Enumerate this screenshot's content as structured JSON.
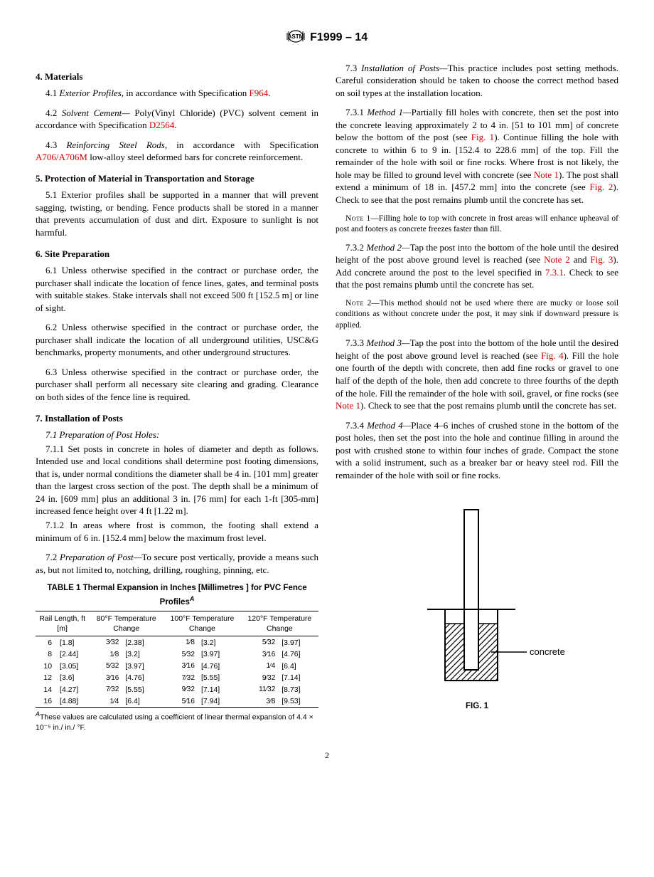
{
  "header": {
    "standard": "F1999 – 14"
  },
  "sec4": {
    "title": "4. Materials",
    "p41a": "4.1 ",
    "p41b": "Exterior Profiles,",
    "p41c": " in accordance with Specification ",
    "p41ref": "F964",
    "p41d": ".",
    "p42a": "4.2 ",
    "p42b": "Solvent Cement—",
    "p42c": " Poly(Vinyl Chloride) (PVC) solvent cement in accordance with Specification ",
    "p42ref": "D2564",
    "p42d": ".",
    "p43a": "4.3 ",
    "p43b": "Reinforcing Steel Rods,",
    "p43c": " in accordance with Specification ",
    "p43ref": "A706/A706M",
    "p43d": " low-alloy steel deformed bars for concrete reinforcement."
  },
  "sec5": {
    "title": "5. Protection of Material in Transportation and Storage",
    "p51": "5.1 Exterior profiles shall be supported in a manner that will prevent sagging, twisting, or bending. Fence products shall be stored in a manner that prevents accumulation of dust and dirt. Exposure to sunlight is not harmful."
  },
  "sec6": {
    "title": "6. Site Preparation",
    "p61": "6.1 Unless otherwise specified in the contract or purchase order, the purchaser shall indicate the location of fence lines, gates, and terminal posts with suitable stakes. Stake intervals shall not exceed 500 ft [152.5 m] or line of sight.",
    "p62": "6.2 Unless otherwise specified in the contract or purchase order, the purchaser shall indicate the location of all underground utilities, USC&G benchmarks, property monuments, and other underground structures.",
    "p63": "6.3 Unless otherwise specified in the contract or purchase order, the purchaser shall perform all necessary site clearing and grading. Clearance on both sides of the fence line is required."
  },
  "sec7": {
    "title": "7. Installation of Posts",
    "p71title": "7.1 Preparation of Post Holes:",
    "p711": "7.1.1 Set posts in concrete in holes of diameter and depth as follows. Intended use and local conditions shall determine post footing dimensions, that is, under normal conditions the diameter shall be 4 in. [101 mm] greater than the largest cross section of the post. The depth shall be a minimum of 24 in. [609 mm] plus an additional 3 in. [76 mm] for each 1-ft [305-mm] increased fence height over 4 ft [1.22 m].",
    "p712": "7.1.2 In areas where frost is common, the footing shall extend a minimum of 6 in. [152.4 mm] below the maximum frost level.",
    "p72a": "7.2 ",
    "p72b": "Preparation of Post—",
    "p72c": "To secure post vertically, provide a means such as, but not limited to, notching, drilling, roughing, pinning, etc.",
    "p73a": "7.3 ",
    "p73b": "Installation of Posts—",
    "p73c": "This practice includes post setting methods. Careful consideration should be taken to choose the correct method based on soil types at the installation location.",
    "p731a": "7.3.1 ",
    "p731b": "Method 1—",
    "p731c": "Partially fill holes with concrete, then set the post into the concrete leaving approximately 2 to 4 in. [51 to 101 mm] of concrete below the bottom of the post (see ",
    "p731ref1": "Fig. 1",
    "p731d": "). Continue filling the hole with concrete to within 6 to 9 in. [152.4 to 228.6 mm] of the top. Fill the remainder of the hole with soil or fine rocks. Where frost is not likely, the hole may be filled to ground level with concrete (see ",
    "p731ref2": "Note 1",
    "p731e": "). The post shall extend a minimum of 18 in. [457.2 mm] into the concrete (see ",
    "p731ref3": "Fig. 2",
    "p731f": "). Check to see that the post remains plumb until the concrete has set.",
    "note1label": "Note",
    "note1num": " 1—",
    "note1": "Filling hole to top with concrete in frost areas will enhance upheaval of post and footers as concrete freezes faster than fill.",
    "p732a": "7.3.2 ",
    "p732b": "Method 2—",
    "p732c": "Tap the post into the bottom of the hole until the desired height of the post above ground level is reached (see ",
    "p732ref1": "Note 2",
    "p732d": " and ",
    "p732ref2": "Fig. 3",
    "p732e": "). Add concrete around the post to the level specified in ",
    "p732ref3": "7.3.1",
    "p732f": ". Check to see that the post remains plumb until the concrete has set.",
    "note2label": "Note",
    "note2num": " 2—",
    "note2": "This method should not be used where there are mucky or loose soil conditions as without concrete under the post, it may sink if downward pressure is applied.",
    "p733a": "7.3.3 ",
    "p733b": "Method 3—",
    "p733c": "Tap the post into the bottom of the hole until the desired height of the post above ground level is reached (see ",
    "p733ref1": "Fig. 4",
    "p733d": "). Fill the hole one fourth of the depth with concrete, then add fine rocks or gravel to one half of the depth of the hole, then add concrete to three fourths of the depth of the hole. Fill the remainder of the hole with soil, gravel, or fine rocks (see ",
    "p733ref2": "Note 1",
    "p733e": "). Check to see that the post remains plumb until the concrete has set.",
    "p734a": "7.3.4 ",
    "p734b": "Method 4—",
    "p734c": "Place 4–6 inches of crushed stone in the bottom of the post holes, then set the post into the hole and continue filling in around the post with crushed stone to within four inches of grade. Compact the stone with a solid instrument, such as a breaker bar or heavy steel rod. Fill the remainder of the hole with soil or fine rocks."
  },
  "table1": {
    "title": "TABLE 1 Thermal Expansion in Inches [Millimetres ] for PVC Fence Profiles",
    "titlesup": "A",
    "col1": "Rail Length, ft [m]",
    "col2": "80°F Temperature Change",
    "col3": "100°F Temperature Change",
    "col4": "120°F Temperature Change",
    "rows": [
      {
        "len_ft": "6",
        "len_m": "[1.8]",
        "t80f": "3⁄32",
        "t80m": "[2.38]",
        "t100f": "1⁄8",
        "t100m": "[3.2]",
        "t120f": "5⁄32",
        "t120m": "[3.97]"
      },
      {
        "len_ft": "8",
        "len_m": "[2.44]",
        "t80f": "1⁄8",
        "t80m": "[3.2]",
        "t100f": "5⁄32",
        "t100m": "[3.97]",
        "t120f": "3⁄16",
        "t120m": "[4.76]"
      },
      {
        "len_ft": "10",
        "len_m": "[3.05]",
        "t80f": "5⁄32",
        "t80m": "[3.97]",
        "t100f": "3⁄16",
        "t100m": "[4.76]",
        "t120f": "1⁄4",
        "t120m": "[6.4]"
      },
      {
        "len_ft": "12",
        "len_m": "[3.6]",
        "t80f": "3⁄16",
        "t80m": "[4.76]",
        "t100f": "7⁄32",
        "t100m": "[5.55]",
        "t120f": "9⁄32",
        "t120m": "[7.14]"
      },
      {
        "len_ft": "14",
        "len_m": "[4.27]",
        "t80f": "7⁄32",
        "t80m": "[5.55]",
        "t100f": "9⁄32",
        "t100m": "[7.14]",
        "t120f": "11⁄32",
        "t120m": "[8.73]"
      },
      {
        "len_ft": "16",
        "len_m": "[4.88]",
        "t80f": "1⁄4",
        "t80m": "[6.4]",
        "t100f": "5⁄16",
        "t100m": "[7.94]",
        "t120f": "3⁄8",
        "t120m": "[9.53]"
      }
    ],
    "footnote_sup": "A",
    "footnote": "These values are calculated using a coefficient of linear thermal expansion of 4.4 × 10⁻⁵ in./ in./ °F."
  },
  "fig1": {
    "label_concrete": "concrete",
    "caption": "FIG. 1"
  },
  "page_number": "2"
}
